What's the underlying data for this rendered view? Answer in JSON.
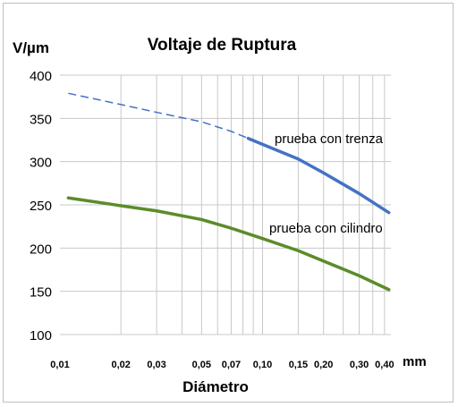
{
  "chart_data": {
    "type": "line",
    "title": "Voltaje de Ruptura",
    "ylabel": "V/µm",
    "xlabel": "Diámetro",
    "x_unit": "mm",
    "x_scale": "log",
    "x_tick_labels": [
      "0,01",
      "0,02",
      "0,03",
      "0,05",
      "0,07",
      "0,10",
      "0,15",
      "0,20",
      "0,30",
      "0,40"
    ],
    "x_ticks": [
      0.01,
      0.02,
      0.03,
      0.05,
      0.07,
      0.1,
      0.15,
      0.2,
      0.3,
      0.4
    ],
    "y_ticks": [
      100,
      150,
      200,
      250,
      300,
      350,
      400
    ],
    "ylim": [
      100,
      400
    ],
    "grid": true,
    "series": [
      {
        "name": "prueba con trenza",
        "color": "#4472c4",
        "x": [
          0.011,
          0.02,
          0.03,
          0.05,
          0.07,
          0.1,
          0.15,
          0.2,
          0.3,
          0.42
        ],
        "y": [
          379,
          366,
          357,
          346,
          335,
          320,
          303,
          287,
          263,
          241
        ],
        "dashed_until_x": 0.085
      },
      {
        "name": "prueba con cilindro",
        "color": "#5b8c2a",
        "x": [
          0.011,
          0.02,
          0.03,
          0.05,
          0.07,
          0.1,
          0.15,
          0.2,
          0.3,
          0.42
        ],
        "y": [
          258,
          249,
          243,
          233,
          223,
          211,
          197,
          185,
          168,
          152
        ]
      }
    ]
  }
}
